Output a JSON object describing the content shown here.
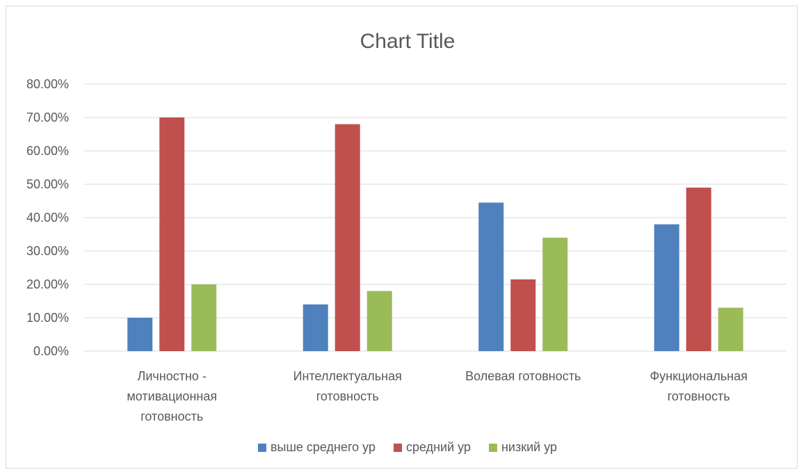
{
  "chart_data": {
    "type": "bar",
    "title": "Chart Title",
    "xlabel": "",
    "ylabel": "",
    "ylim": [
      0,
      80
    ],
    "y_ticks": [
      "0.00%",
      "10.00%",
      "20.00%",
      "30.00%",
      "40.00%",
      "50.00%",
      "60.00%",
      "70.00%",
      "80.00%"
    ],
    "grid": true,
    "legend_position": "bottom",
    "categories": [
      [
        "Личностно -",
        "мотивационная",
        "готовность"
      ],
      [
        "Интеллектуальная",
        "готовность"
      ],
      [
        "Волевая готовность"
      ],
      [
        "Функциональная",
        "готовность"
      ]
    ],
    "series": [
      {
        "name": "выше среднего ур",
        "color": "#4f81bd",
        "values": [
          10,
          14,
          44.5,
          38
        ]
      },
      {
        "name": "средний ур",
        "color": "#c0504d",
        "values": [
          70,
          68,
          21.5,
          49
        ]
      },
      {
        "name": "низкий ур",
        "color": "#9bbb59",
        "values": [
          20,
          18,
          34,
          13
        ]
      }
    ]
  }
}
